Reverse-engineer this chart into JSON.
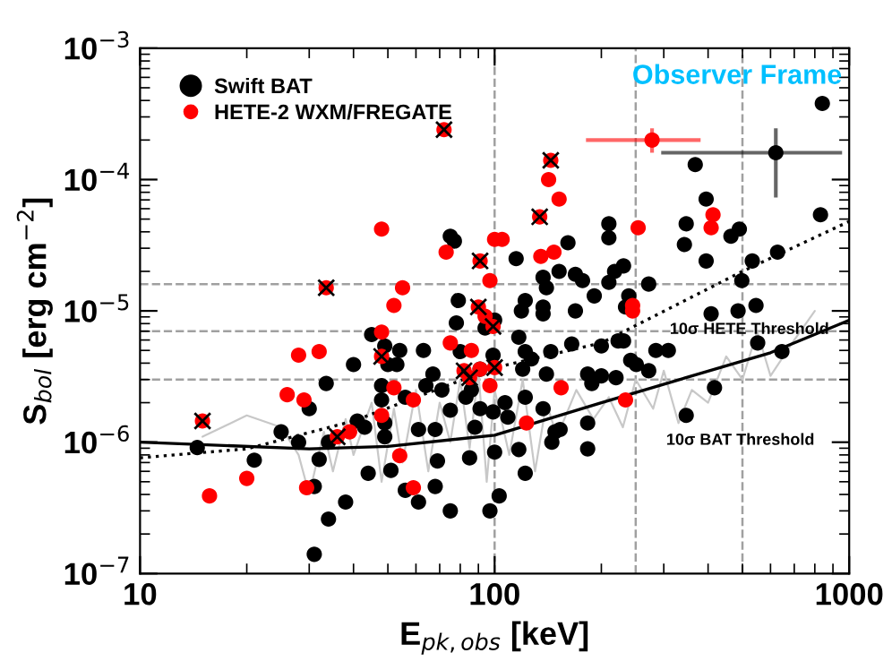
{
  "chart_data": {
    "type": "scatter",
    "xlabel": "E$_{pk,obs}$ [keV]",
    "ylabel": "S$_{bol}$ [erg cm$^{−2}$]",
    "log": "xy",
    "xlim": [
      10,
      1000
    ],
    "ylim": [
      1e-07,
      0.001
    ],
    "xticks": [
      10,
      100,
      1000
    ],
    "yticks": [
      {
        "value": 1e-07,
        "label": "10$^{−7}$"
      },
      {
        "value": 1e-06,
        "label": "10$^{−6}$"
      },
      {
        "value": 1e-05,
        "label": "10$^{−5}$"
      },
      {
        "value": 0.0001,
        "label": "10$^{−4}$"
      },
      {
        "value": 0.001,
        "label": "10$^{−3}$"
      }
    ],
    "grid": false,
    "legend": "top left",
    "marker": "circle",
    "ref_lines": [
      {
        "axis": "x",
        "value": 100,
        "color": "#a0a0a0",
        "line_style": "dashed"
      },
      {
        "axis": "x",
        "value": 250,
        "color": "#a0a0a0",
        "line_style": "dashed"
      },
      {
        "axis": "x",
        "value": 500,
        "color": "#a0a0a0",
        "line_style": "dashed"
      },
      {
        "axis": "y",
        "value": 1.6e-05,
        "color": "#a0a0a0",
        "line_style": "dashed"
      },
      {
        "axis": "y",
        "value": 7e-06,
        "color": "#a0a0a0",
        "line_style": "dashed"
      },
      {
        "axis": "y",
        "value": 3e-06,
        "color": "#a0a0a0",
        "line_style": "dashed"
      }
    ],
    "annotations": [
      "Observer Frame",
      "10σ HETE Threshold",
      "10σ BAT Threshold"
    ],
    "series": [
      {
        "type": "line",
        "marker": "none",
        "color": "#c8c8c8",
        "x": [
          15,
          20,
          25,
          28,
          30,
          33,
          35,
          38,
          40,
          45,
          48,
          52,
          55,
          60,
          65,
          70,
          75,
          80,
          85,
          90,
          95,
          100,
          110,
          120,
          130,
          140,
          150,
          170,
          190,
          210,
          230,
          250,
          280,
          300,
          330,
          360,
          400,
          450,
          500,
          550,
          600,
          700,
          800
        ],
        "values": [
          1.1e-06,
          1.6e-06,
          1.3e-06,
          8e-07,
          4e-07,
          1.2e-06,
          6e-07,
          1.5e-06,
          8e-07,
          2e-06,
          5e-07,
          1.8e-06,
          7e-07,
          2.5e-06,
          6e-07,
          2e-06,
          1e-06,
          3e-06,
          9e-07,
          3.5e-06,
          5e-07,
          2.5e-06,
          8e-07,
          3e-06,
          6e-07,
          2e-06,
          1.1e-06,
          2.5e-06,
          1.5e-06,
          2.2e-06,
          1.3e-06,
          3e-06,
          1.8e-06,
          3.5e-06,
          1.4e-06,
          2.5e-06,
          2e-06,
          4.5e-06,
          3e-06,
          7e-06,
          3.2e-06,
          6e-06,
          1e-05
        ]
      },
      {
        "type": "line",
        "marker": "none",
        "color": "#000000",
        "line_style": "solid",
        "x": [
          10,
          30,
          50,
          100,
          200,
          600,
          1000
        ],
        "values": [
          1e-06,
          8.9e-07,
          9.3e-07,
          1.13e-06,
          2e-06,
          4.8e-06,
          8.5e-06
        ]
      },
      {
        "type": "line",
        "marker": "none",
        "color": "#000000",
        "line_style": "dotted",
        "x": [
          10,
          20,
          40,
          100,
          200,
          500,
          1000
        ],
        "values": [
          7.6e-07,
          8.9e-07,
          1.45e-06,
          3.7e-06,
          5.7e-06,
          2e-05,
          4.8e-05
        ]
      },
      {
        "name": "Swift BAT",
        "color": "#000000",
        "x": [
          75,
          77,
          79,
          78,
          45,
          94,
          100,
          115,
          161,
          152,
          169,
          177,
          137,
          140,
          210,
          210,
          218,
          231,
          210,
          191,
          239,
          272,
          169,
          234,
          368,
          395,
          347,
          343,
          464,
          490,
          395,
          533,
          628,
          498,
          408,
          486,
          546,
          840,
          830,
          122,
          119,
          137,
          137,
          14.5,
          21,
          25,
          28,
          30,
          32,
          31,
          34,
          31,
          33.5,
          34,
          38,
          40,
          41,
          43,
          44,
          48,
          48,
          49,
          49,
          49,
          50,
          53,
          51,
          54,
          56,
          56,
          61,
          61,
          63,
          64,
          67,
          68,
          68,
          69,
          71,
          75,
          75,
          80,
          83,
          85,
          88,
          91,
          91,
          97,
          99,
          99,
          100,
          103,
          107,
          109,
          117,
          122,
          117,
          122,
          120,
          127,
          122,
          140,
          144,
          137,
          148,
          153,
          145,
          165,
          183,
          183,
          183,
          188,
          200,
          200,
          220,
          223,
          231,
          242,
          251,
          272,
          285,
          309,
          347,
          417,
          552,
          646,
          86
        ],
        "values": [
          3.7e-05,
          3.4e-05,
          1.2e-05,
          8.1e-06,
          6.6e-06,
          7.4e-06,
          8.5e-06,
          2.5e-05,
          3.3e-05,
          2e-05,
          1.9e-05,
          1.7e-05,
          1.8e-05,
          1.5e-05,
          4.6e-05,
          3.6e-05,
          2e-05,
          2.2e-05,
          1.65e-05,
          1.3e-05,
          1.3e-05,
          1.6e-05,
          1e-05,
          1.07e-05,
          0.00013,
          7.1e-05,
          4.6e-05,
          3.2e-05,
          3.7e-05,
          4.2e-05,
          2.4e-05,
          2.4e-05,
          2.8e-05,
          1.7e-05,
          9.5e-06,
          1e-05,
          1.1e-05,
          0.00038,
          5.4e-05,
          1.2e-05,
          1e-05,
          1.07e-05,
          9.5e-06,
          9.1e-07,
          7.3e-07,
          1.2e-06,
          1e-06,
          1.8e-06,
          7.4e-07,
          4.6e-07,
          2.6e-07,
          1.4e-07,
          2.8e-06,
          1e-06,
          3.5e-07,
          3.9e-06,
          1.45e-06,
          1.3e-06,
          5.8e-07,
          2.7e-06,
          2.1e-06,
          1.4e-06,
          1.1e-06,
          5.4e-06,
          3.9e-06,
          3.9e-06,
          6.1e-07,
          5e-06,
          2.2e-06,
          4.3e-07,
          3.5e-07,
          1.25e-06,
          5e-06,
          2.7e-06,
          3.3e-06,
          4.6e-07,
          1.25e-06,
          7.2e-07,
          2.5e-06,
          1.75e-06,
          3e-07,
          4.9e-06,
          2.2e-06,
          7.6e-07,
          1.3e-06,
          1.8e-06,
          3.6e-06,
          3e-07,
          4.6e-06,
          1.7e-06,
          8.4e-07,
          3.9e-07,
          2e-06,
          1.55e-06,
          8.8e-07,
          5.8e-07,
          6.3e-06,
          4.9e-06,
          3.6e-06,
          4.3e-06,
          2.2e-06,
          3.3e-06,
          4.9e-06,
          1.8e-06,
          1.2e-06,
          1.25e-06,
          1e-06,
          5.6e-06,
          3.3e-06,
          1.4e-06,
          8.9e-07,
          2.8e-06,
          5.4e-06,
          3.2e-06,
          3.1e-06,
          5.9e-06,
          5.9e-06,
          4.2e-06,
          3.9e-06,
          3.5e-06,
          5e-06,
          5e-06,
          1.6e-06,
          2.6e-06,
          5.7e-06,
          4.9e-06,
          2.5e-06
        ]
      },
      {
        "name": "HETE-2 WXM/FREGATE",
        "color": "#ff0000",
        "x": [
          48,
          73,
          55,
          52,
          97,
          94,
          100,
          48,
          142,
          152,
          105,
          135,
          147,
          254,
          413,
          408,
          245,
          245,
          28,
          32,
          26,
          29,
          52,
          59,
          75,
          97,
          39,
          48,
          54,
          20,
          15.7,
          29.5,
          59,
          86,
          91,
          154,
          123,
          234,
          15,
          33.5,
          36,
          48,
          72,
          82,
          85,
          90,
          91,
          99,
          100,
          134,
          144
        ],
        "values": [
          4.2e-05,
          2.8e-05,
          1.5e-05,
          1.1e-05,
          1.7e-05,
          9.1e-06,
          3.5e-05,
          6.9e-06,
          0.0001,
          7.1e-05,
          3.5e-05,
          2.6e-05,
          2.8e-05,
          4.3e-05,
          5.4e-05,
          4.3e-05,
          1.1e-05,
          1e-05,
          4.6e-06,
          4.9e-06,
          2.3e-06,
          2.1e-06,
          2.6e-06,
          2.1e-06,
          5.7e-06,
          2.7e-06,
          1.2e-06,
          1.6e-06,
          7.9e-07,
          5.3e-07,
          3.9e-07,
          4.5e-07,
          4.5e-07,
          5e-06,
          3.6e-06,
          2.6e-06,
          1.4e-06,
          2.1e-06,
          1.45e-06,
          1.5e-05,
          1.1e-06,
          4.5e-06,
          0.00024,
          3.5e-06,
          3.1e-06,
          1.07e-05,
          2.4e-05,
          7.6e-06,
          3.7e-06,
          5.2e-05,
          0.00014
        ]
      },
      {
        "marker": "cross",
        "color": "#000000",
        "x": [
          15,
          33.5,
          36,
          48,
          72,
          82,
          85,
          90,
          91,
          99,
          100,
          134,
          144
        ],
        "values": [
          1.45e-06,
          1.5e-05,
          1.1e-06,
          4.5e-06,
          0.00024,
          3.5e-06,
          3.1e-06,
          1.07e-05,
          2.4e-05,
          7.6e-06,
          3.7e-06,
          5.2e-05,
          0.00014
        ]
      },
      {
        "color": "#ff0000",
        "x": [
          278
        ],
        "values": [
          0.0002
        ],
        "errors": [
          [
            0.00016,
            0.000246
          ]
        ],
        "xerrors": [
          [
            181,
            381
          ]
        ]
      },
      {
        "color": "#000000",
        "x": [
          621
        ],
        "values": [
          0.00016
        ],
        "errors": [
          [
            7.3e-05,
            0.000246
          ]
        ],
        "xerrors": [
          [
            295,
            955
          ]
        ]
      }
    ]
  }
}
